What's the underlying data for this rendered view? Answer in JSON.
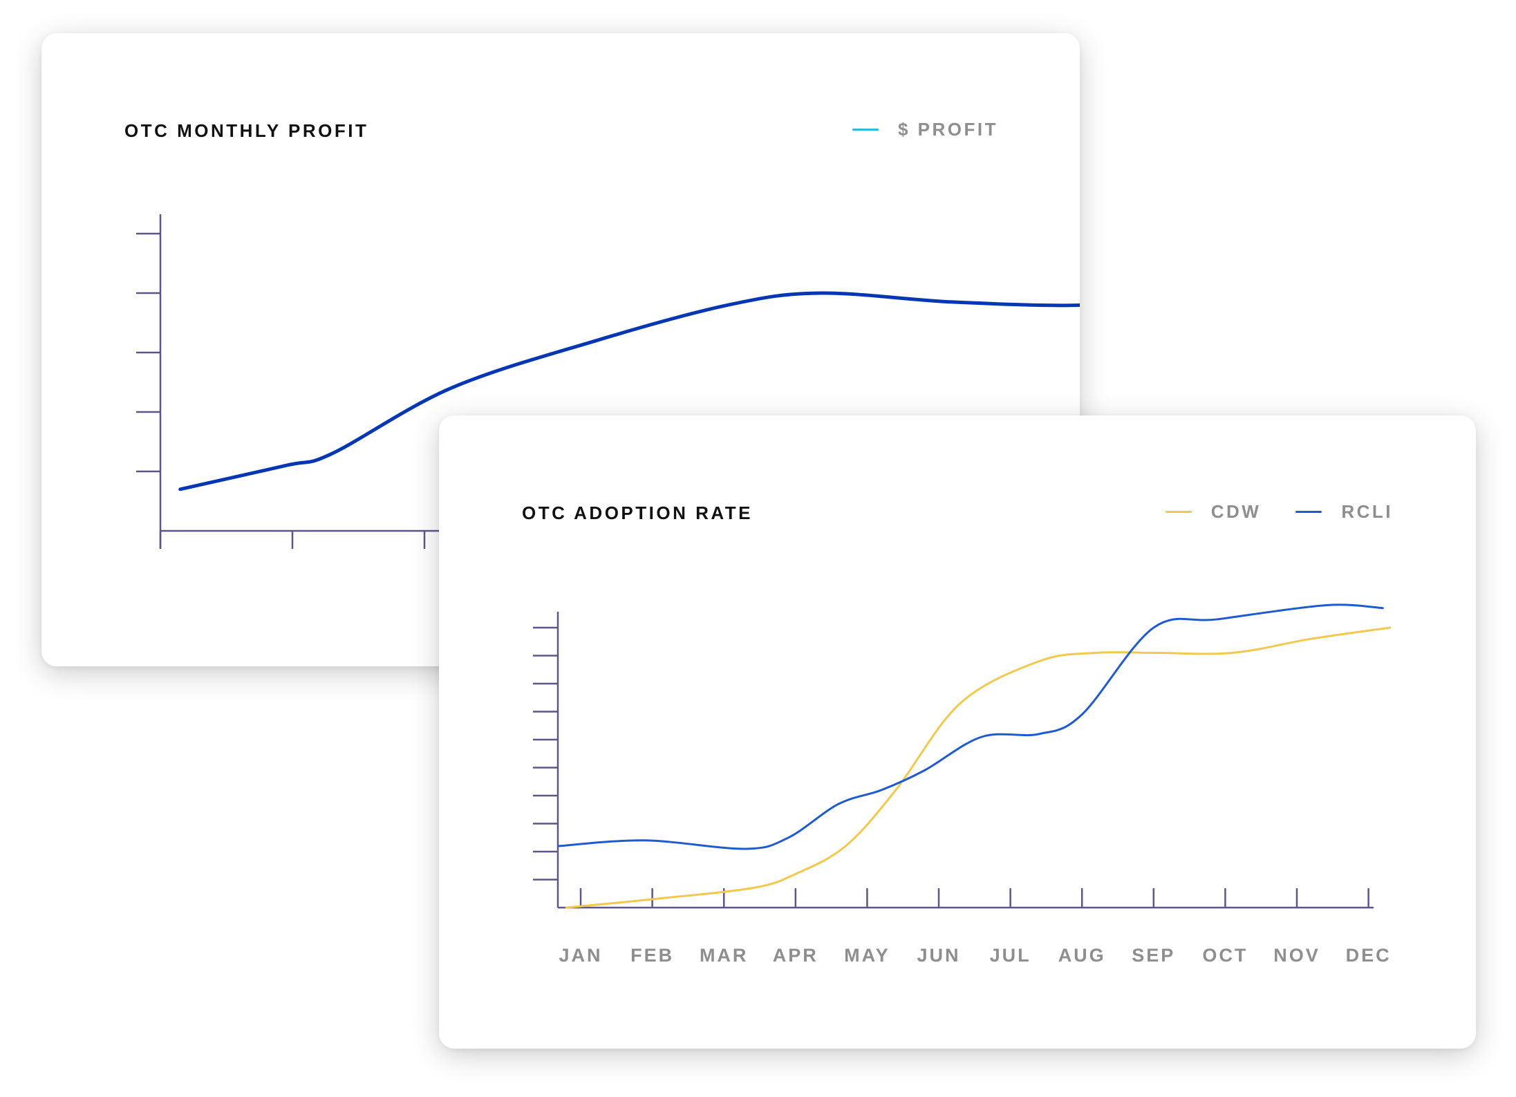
{
  "colors": {
    "axis": "#5c5688",
    "profit_line": "#0536b3",
    "profit_legend": "#25bde0",
    "cdw": "#f2c94c",
    "rcli": "#1e5bd0",
    "muted_text": "#8e8e8e"
  },
  "chart_data": [
    {
      "type": "line",
      "title": "OTC MONTHLY PROFIT",
      "legend": [
        {
          "label": "$ PROFIT",
          "color": "#25bde0"
        }
      ],
      "legend_position": "top-right",
      "grid": false,
      "xlim": [
        0,
        11
      ],
      "ylim": [
        0,
        5
      ],
      "y_ticks": [
        1,
        2,
        3,
        4,
        5
      ],
      "x_ticks": [
        0,
        1,
        2
      ],
      "series": [
        {
          "x": [
            0.15,
            0.95,
            1.3,
            2.2,
            3.3,
            4.3,
            5.0,
            6.0,
            7.0,
            7.5
          ],
          "values": [
            0.7,
            1.1,
            1.3,
            2.4,
            3.2,
            3.8,
            4.0,
            3.85,
            3.8,
            4.0
          ]
        }
      ]
    },
    {
      "type": "line",
      "title": "OTC ADOPTION RATE",
      "legend": [
        {
          "label": "CDW",
          "color": "#f2c94c"
        },
        {
          "label": "RCLI",
          "color": "#1e5bd0"
        }
      ],
      "legend_position": "top-right",
      "grid": false,
      "categories": [
        "JAN",
        "FEB",
        "MAR",
        "APR",
        "MAY",
        "JUN",
        "JUL",
        "AUG",
        "SEP",
        "OCT",
        "NOV",
        "DEC"
      ],
      "ylim": [
        0,
        10.5
      ],
      "y_ticks": [
        1,
        2,
        3,
        4,
        5,
        6,
        7,
        8,
        9,
        10
      ],
      "series": [
        {
          "name": "CDW",
          "x": [
            -0.2,
            1.0,
            2.4,
            3.0,
            3.7,
            4.4,
            5.3,
            6.4,
            7.2,
            8.0,
            9.1,
            10.2,
            11.3
          ],
          "values": [
            0.0,
            0.3,
            0.7,
            1.2,
            2.2,
            4.2,
            7.3,
            8.8,
            9.1,
            9.1,
            9.1,
            9.6,
            10.0
          ]
        },
        {
          "name": "RCLI",
          "x": [
            -0.3,
            0.9,
            2.3,
            2.9,
            3.6,
            4.2,
            4.8,
            5.6,
            6.4,
            7.0,
            8.0,
            8.9,
            10.4,
            11.2
          ],
          "values": [
            2.2,
            2.4,
            2.1,
            2.5,
            3.7,
            4.2,
            4.9,
            6.1,
            6.2,
            6.9,
            10.0,
            10.3,
            10.8,
            10.7
          ]
        }
      ]
    }
  ]
}
